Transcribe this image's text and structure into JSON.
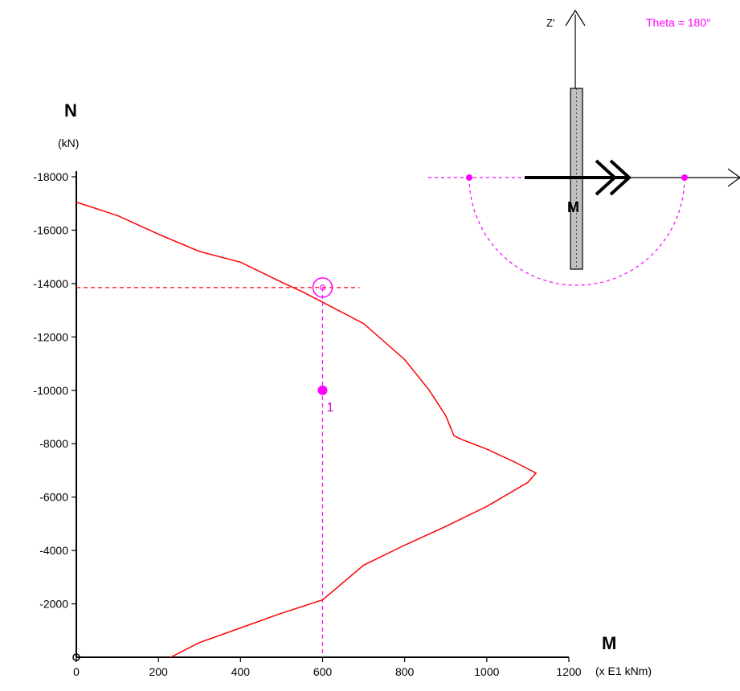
{
  "chart_data": {
    "type": "line",
    "title": "",
    "xlabel": "M",
    "x_unit": "(x E1 kNm)",
    "ylabel": "N",
    "y_unit": "(kN)",
    "xlim": [
      0,
      1200
    ],
    "ylim": [
      0,
      -18000
    ],
    "x_ticks": [
      "0",
      "200",
      "400",
      "600",
      "800",
      "1000",
      "1200"
    ],
    "y_ticks": [
      "-2000",
      "-4000",
      "-6000",
      "-8000",
      "-10000",
      "-12000",
      "-14000",
      "-16000",
      "-18000"
    ],
    "grid": false,
    "series": [
      {
        "color": "#ff0000",
        "points": [
          [
            0,
            -17050
          ],
          [
            100,
            -16550
          ],
          [
            200,
            -15850
          ],
          [
            300,
            -15200
          ],
          [
            400,
            -14800
          ],
          [
            500,
            -14050
          ],
          [
            550,
            -13700
          ],
          [
            600,
            -13300
          ],
          [
            700,
            -12500
          ],
          [
            800,
            -11150
          ],
          [
            860,
            -10000
          ],
          [
            900,
            -9050
          ],
          [
            920,
            -8300
          ],
          [
            940,
            -8150
          ],
          [
            1000,
            -7800
          ],
          [
            1070,
            -7300
          ],
          [
            1120,
            -6900
          ],
          [
            1100,
            -6550
          ],
          [
            1000,
            -5650
          ],
          [
            900,
            -4900
          ],
          [
            800,
            -4200
          ],
          [
            700,
            -3450
          ],
          [
            600,
            -2150
          ],
          [
            500,
            -1650
          ],
          [
            400,
            -1100
          ],
          [
            300,
            -550
          ],
          [
            230,
            0
          ]
        ]
      }
    ],
    "design_point": {
      "label": "1",
      "x": 600,
      "y": -10000,
      "color": "#ff00ff"
    },
    "capacity_point": {
      "x": 600,
      "y": -13850,
      "color": "#ff00ff"
    },
    "reference_line_y": -13850,
    "reference_line_color": "#ff0000"
  },
  "inset": {
    "theta_label": "Theta = 180°",
    "z_axis_label": "Z'",
    "moment_label": "M",
    "colors": {
      "section_fill": "#c0c0c0",
      "arc": "#ff00ff",
      "arrow": "#000000"
    }
  }
}
